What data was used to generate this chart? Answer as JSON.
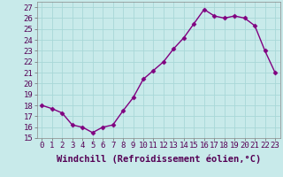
{
  "x": [
    0,
    1,
    2,
    3,
    4,
    5,
    6,
    7,
    8,
    9,
    10,
    11,
    12,
    13,
    14,
    15,
    16,
    17,
    18,
    19,
    20,
    21,
    22,
    23
  ],
  "y": [
    18.0,
    17.7,
    17.3,
    16.2,
    16.0,
    15.5,
    16.0,
    16.2,
    17.5,
    18.7,
    20.4,
    21.2,
    22.0,
    23.2,
    24.2,
    25.5,
    26.8,
    26.2,
    26.0,
    26.2,
    26.0,
    25.3,
    23.0,
    21.0
  ],
  "line_color": "#800080",
  "marker": "D",
  "marker_size": 2.5,
  "bg_color": "#c8eaea",
  "grid_color": "#a8d8d8",
  "xlabel": "Windchill (Refroidissement éolien,°C)",
  "xlim": [
    -0.5,
    23.5
  ],
  "ylim": [
    15,
    27.5
  ],
  "yticks": [
    15,
    16,
    17,
    18,
    19,
    20,
    21,
    22,
    23,
    24,
    25,
    26,
    27
  ],
  "xticks": [
    0,
    1,
    2,
    3,
    4,
    5,
    6,
    7,
    8,
    9,
    10,
    11,
    12,
    13,
    14,
    15,
    16,
    17,
    18,
    19,
    20,
    21,
    22,
    23
  ],
  "xlabel_fontsize": 7.5,
  "tick_fontsize": 6.5,
  "line_width": 1.0
}
